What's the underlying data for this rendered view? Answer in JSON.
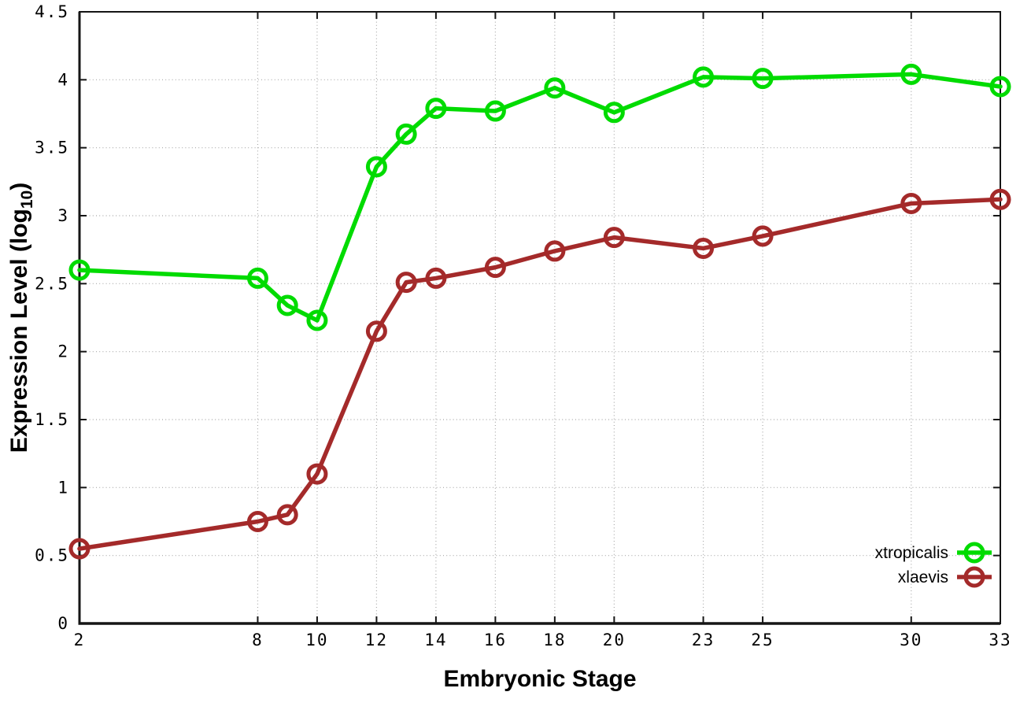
{
  "page": {
    "background": "#ffffff",
    "text_color": "#000000",
    "grid_color": "#a8a8a8",
    "border_color": "#151515"
  },
  "chart_data": {
    "type": "line",
    "title": "",
    "xlabel": "Embryonic Stage",
    "ylabel": "Expression Level (log10)",
    "ylabel_parts": {
      "main": "Expression Level (log",
      "sub": "10",
      "end": ")"
    },
    "xlim": [
      2,
      33
    ],
    "ylim": [
      0,
      4.5
    ],
    "xticks": [
      2,
      8,
      10,
      12,
      14,
      16,
      18,
      20,
      23,
      25,
      30,
      33
    ],
    "yticks": [
      0,
      0.5,
      1,
      1.5,
      2,
      2.5,
      3,
      3.5,
      4,
      4.5
    ],
    "grid": true,
    "marker": "open-circle",
    "legend_position": "inside-bottom-right",
    "x": [
      2,
      8,
      9,
      10,
      12,
      13,
      14,
      16,
      18,
      20,
      23,
      25,
      30,
      33
    ],
    "series": [
      {
        "name": "xtropicalis",
        "color": "#00DB00",
        "values": [
          2.6,
          2.54,
          2.34,
          2.23,
          3.36,
          3.6,
          3.79,
          3.77,
          3.94,
          3.76,
          4.02,
          4.01,
          4.04,
          3.95
        ]
      },
      {
        "name": "xlaevis",
        "color": "#A42A2A",
        "values": [
          0.55,
          0.75,
          0.8,
          1.1,
          2.15,
          2.51,
          2.54,
          2.62,
          2.74,
          2.84,
          2.76,
          2.85,
          3.09,
          3.12
        ]
      }
    ]
  }
}
